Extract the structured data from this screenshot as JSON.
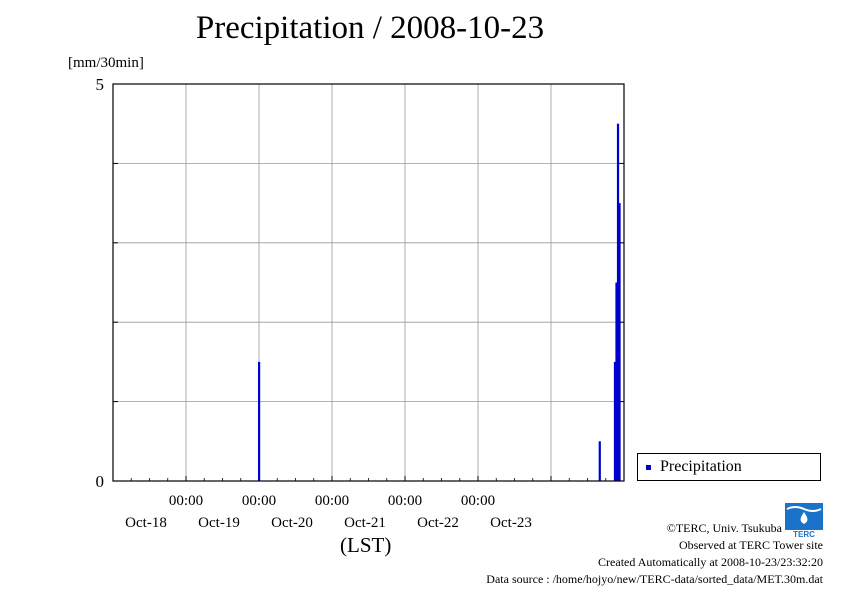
{
  "header": {
    "title": "Precipitation / 2008-10-23",
    "unit": "[mm/30min]"
  },
  "legend": {
    "label": "Precipitation"
  },
  "axis": {
    "xlabel": "(LST)"
  },
  "footer": {
    "copyright": "©TERC, Univ. Tsukuba",
    "observed": "Observed at TERC Tower site",
    "created": "Created Automatically at 2008-10-23/23:32:20",
    "source": "Data source : /home/hojyo/new/TERC-data/sorted_data/MET.30m.dat"
  },
  "logo": {
    "text": "TERC",
    "icon": "terc-logo-icon"
  },
  "colors": {
    "bar": "#0000cc",
    "grid": "#999999",
    "logo": "#1a73c9"
  },
  "chart_data": {
    "type": "bar",
    "title": "Precipitation / 2008-10-23",
    "ylabel": "[mm/30min]",
    "xlabel": "(LST)",
    "ylim": [
      0,
      5
    ],
    "y_ticks": [
      0,
      5
    ],
    "xlim": [
      "2008-10-17 00:00",
      "2008-10-24 00:00"
    ],
    "x_ticks": [
      {
        "time": "2008-10-18 00:00",
        "label_top": "00:00",
        "label_bottom": "Oct-18"
      },
      {
        "time": "2008-10-19 00:00",
        "label_top": "00:00",
        "label_bottom": "Oct-19"
      },
      {
        "time": "2008-10-20 00:00",
        "label_top": "00:00",
        "label_bottom": "Oct-20"
      },
      {
        "time": "2008-10-21 00:00",
        "label_top": "00:00",
        "label_bottom": "Oct-21"
      },
      {
        "time": "2008-10-22 00:00",
        "label_top": "00:00",
        "label_bottom": "Oct-22"
      },
      {
        "time": "2008-10-23 00:00",
        "label_top": "",
        "label_bottom": "Oct-23"
      }
    ],
    "grid": true,
    "legend_position": "bottom-right, outside plot",
    "series": [
      {
        "name": "Precipitation",
        "points": [
          {
            "time": "2008-10-19 00:00",
            "value": 1.5
          },
          {
            "time": "2008-10-23 16:00",
            "value": 0.5
          },
          {
            "time": "2008-10-23 21:00",
            "value": 1.5
          },
          {
            "time": "2008-10-23 21:30",
            "value": 2.5
          },
          {
            "time": "2008-10-23 22:00",
            "value": 4.5
          },
          {
            "time": "2008-10-23 22:30",
            "value": 3.5
          }
        ]
      }
    ]
  }
}
